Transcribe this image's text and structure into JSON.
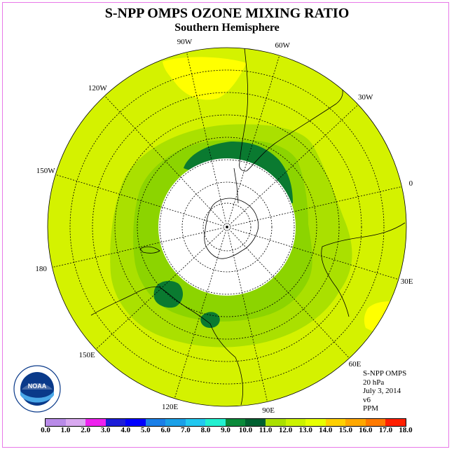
{
  "title": "S-NPP OMPS OZONE MIXING RATIO",
  "subtitle": "Southern Hemisphere",
  "longitude_labels": [
    {
      "name": "lon-90w",
      "text": "90W",
      "deg": -90
    },
    {
      "name": "lon-60w",
      "text": "60W",
      "deg": -60
    },
    {
      "name": "lon-30w",
      "text": "30W",
      "deg": -30
    },
    {
      "name": "lon-0",
      "text": "0",
      "deg": 0
    },
    {
      "name": "lon-30e",
      "text": "30E",
      "deg": 30
    },
    {
      "name": "lon-60e",
      "text": "60E",
      "deg": 60
    },
    {
      "name": "lon-90e",
      "text": "90E",
      "deg": 90
    },
    {
      "name": "lon-120e",
      "text": "120E",
      "deg": 120
    },
    {
      "name": "lon-150e",
      "text": "150E",
      "deg": 150
    },
    {
      "name": "lon-180",
      "text": "180",
      "deg": 180
    },
    {
      "name": "lon-150w",
      "text": "150W",
      "deg": -150
    },
    {
      "name": "lon-120w",
      "text": "120W",
      "deg": -120
    }
  ],
  "info": {
    "instrument": "S-NPP OMPS",
    "pressure": "20 hPa",
    "date": "July 3, 2014",
    "version": "v6",
    "units": "PPM"
  },
  "logo": {
    "text": "NOAA",
    "icon": "noaa-logo-icon"
  },
  "colorbar": {
    "ticks": [
      "0.0",
      "1.0",
      "2.0",
      "3.0",
      "4.0",
      "5.0",
      "6.0",
      "7.0",
      "8.0",
      "9.0",
      "10.0",
      "11.0",
      "12.0",
      "13.0",
      "14.0",
      "15.0",
      "16.0",
      "17.0",
      "18.0"
    ],
    "colors": [
      "#b98be8",
      "#d9a9f0",
      "#ee22ee",
      "#1d1dd8",
      "#0000ff",
      "#1a7fe8",
      "#1aa0e8",
      "#22c8f0",
      "#22f0d0",
      "#0a8a3a",
      "#006030",
      "#aae000",
      "#ccf200",
      "#e8ff00",
      "#ffd000",
      "#ffa800",
      "#ff7a00",
      "#ff2000",
      "#7a4a2a"
    ]
  },
  "map": {
    "background_color": "#d4f200",
    "polar_night_color": "#ffffff",
    "features": [
      {
        "name": "ring-light-green",
        "value_range": [
          11,
          12
        ],
        "color": "#aae000"
      },
      {
        "name": "ring-green",
        "value_range": [
          10,
          11
        ],
        "color": "#8cd400"
      },
      {
        "name": "dark-green-patch-1",
        "value_range": [
          9,
          10
        ],
        "color": "#0a7a30"
      },
      {
        "name": "yellow-patch",
        "value_range": [
          12,
          13
        ],
        "color": "#ffff00"
      }
    ]
  }
}
